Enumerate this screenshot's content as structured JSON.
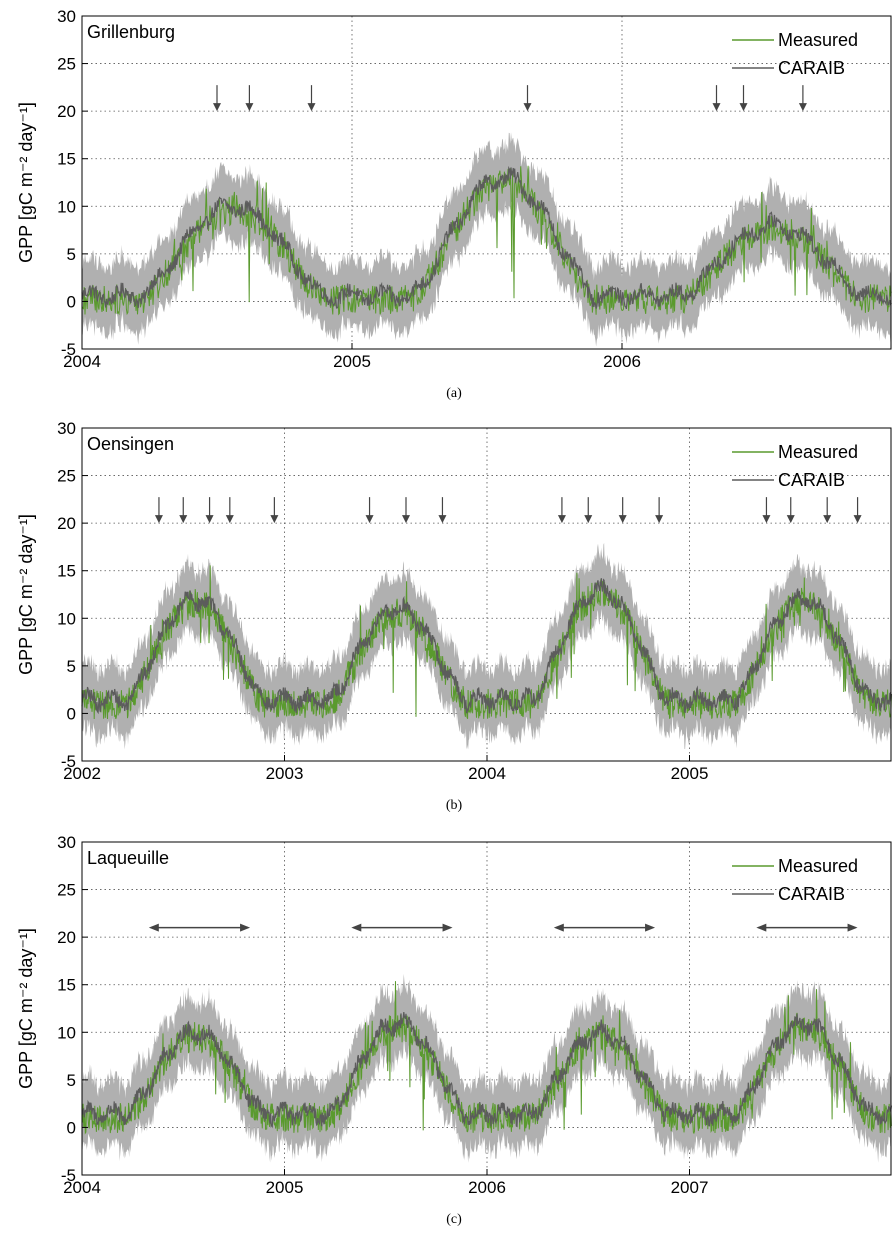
{
  "chart_data": [
    {
      "type": "line",
      "site": "Grillenburg",
      "caption": "(a)",
      "ylabel": "GPP [gC m⁻² day⁻¹]",
      "ylim": [
        -5,
        30
      ],
      "yticks": [
        -5,
        0,
        5,
        10,
        15,
        20,
        25,
        30
      ],
      "xlim": [
        2004,
        2007
      ],
      "xticks": [
        2004,
        2005,
        2006
      ],
      "xtick_labels": [
        "2004",
        "2005",
        "2006"
      ],
      "legend": [
        "Measured",
        "CARAIB"
      ],
      "legend_position": "top-right",
      "colors": {
        "measured": "#5a9a2e",
        "caraib": "#5c5c5c",
        "band": "#b0b0b0",
        "arrow": "#444444"
      },
      "seasonal_peaks": [
        10,
        13,
        8
      ],
      "markers": {
        "kind": "down-arrows",
        "x": [
          2004.5,
          2004.62,
          2004.85,
          2005.65,
          2006.35,
          2006.45,
          2006.67
        ],
        "y": 20
      }
    },
    {
      "type": "line",
      "site": "Oensingen",
      "caption": "(b)",
      "ylabel": "GPP [gC m⁻² day⁻¹]",
      "ylim": [
        -5,
        30
      ],
      "yticks": [
        -5,
        0,
        5,
        10,
        15,
        20,
        25,
        30
      ],
      "xlim": [
        2002,
        2006
      ],
      "xticks": [
        2002,
        2003,
        2004,
        2005
      ],
      "xtick_labels": [
        "2002",
        "2003",
        "2004",
        "2005"
      ],
      "legend": [
        "Measured",
        "CARAIB"
      ],
      "legend_position": "top-right",
      "colors": {
        "measured": "#5a9a2e",
        "caraib": "#5c5c5c",
        "band": "#b0b0b0",
        "arrow": "#444444"
      },
      "seasonal_peaks": [
        12,
        11,
        13,
        12
      ],
      "markers": {
        "kind": "down-arrows",
        "x": [
          2002.38,
          2002.5,
          2002.63,
          2002.73,
          2002.95,
          2003.42,
          2003.6,
          2003.78,
          2004.37,
          2004.5,
          2004.67,
          2004.85,
          2005.38,
          2005.5,
          2005.68,
          2005.83
        ],
        "y": 20
      }
    },
    {
      "type": "line",
      "site": "Laqueuille",
      "caption": "(c)",
      "ylabel": "GPP [gC m⁻² day⁻¹]",
      "ylim": [
        -5,
        30
      ],
      "yticks": [
        -5,
        0,
        5,
        10,
        15,
        20,
        25,
        30
      ],
      "xlim": [
        2004,
        2008
      ],
      "xticks": [
        2004,
        2005,
        2006,
        2007
      ],
      "xtick_labels": [
        "2004",
        "2005",
        "2006",
        "2007"
      ],
      "legend": [
        "Measured",
        "CARAIB"
      ],
      "legend_position": "top-right",
      "colors": {
        "measured": "#5a9a2e",
        "caraib": "#5c5c5c",
        "band": "#b0b0b0",
        "arrow": "#444444"
      },
      "seasonal_peaks": [
        10,
        11,
        10,
        11
      ],
      "markers": {
        "kind": "range-arrows",
        "ranges": [
          [
            2004.33,
            2004.83
          ],
          [
            2005.33,
            2005.83
          ],
          [
            2006.33,
            2006.83
          ],
          [
            2007.33,
            2007.83
          ]
        ],
        "y": 21
      }
    }
  ]
}
